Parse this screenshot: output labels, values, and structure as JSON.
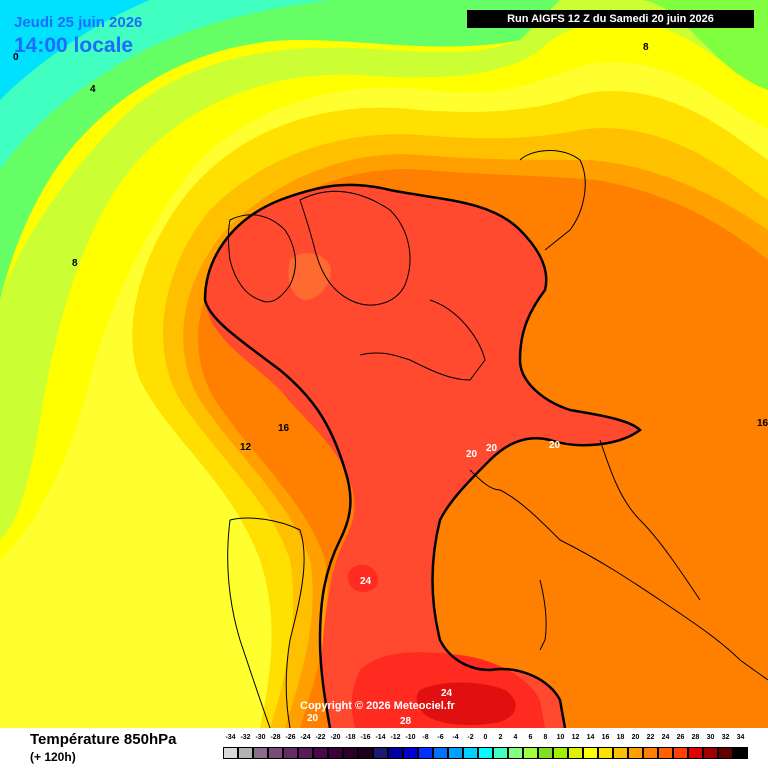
{
  "header": {
    "date": "Jeudi 25 juin 2026",
    "time": "14:00 locale",
    "run": "Run AIGFS 12 Z du Samedi 20 juin 2026"
  },
  "map": {
    "copyright": "Copyright © 2026 Meteociel.fr",
    "contour_labels": [
      "0",
      "4",
      "8",
      "8",
      "12",
      "16",
      "16",
      "20",
      "20",
      "20",
      "24",
      "24",
      "28",
      "20"
    ]
  },
  "footer": {
    "title": "Température 850hPa",
    "subtitle": "(+ 120h)"
  },
  "legend": {
    "values": [
      "-34",
      "-32",
      "-30",
      "-28",
      "-26",
      "-24",
      "-22",
      "-20",
      "-18",
      "-16",
      "-14",
      "-12",
      "-10",
      "-8",
      "-6",
      "-4",
      "-2",
      "0",
      "2",
      "4",
      "6",
      "8",
      "10",
      "12",
      "14",
      "16",
      "18",
      "20",
      "22",
      "24",
      "26",
      "28",
      "30",
      "32",
      "34"
    ],
    "colors": [
      "#d9d9d9",
      "#b3b3b3",
      "#8c6c8c",
      "#7a4a7a",
      "#6a2a6a",
      "#5a1a5a",
      "#4a0a4a",
      "#3a003a",
      "#2a002a",
      "#1a001a",
      "#1a1a70",
      "#0000a0",
      "#0000d0",
      "#0030ff",
      "#0070ff",
      "#00a0ff",
      "#00d0ff",
      "#00ffff",
      "#40ffc0",
      "#80ff80",
      "#a0ff40",
      "#80e020",
      "#a0f000",
      "#e0f000",
      "#ffff00",
      "#ffe000",
      "#ffc000",
      "#ffa000",
      "#ff8000",
      "#ff6000",
      "#ff4000",
      "#e00000",
      "#a00000",
      "#600000",
      "#000000"
    ]
  }
}
